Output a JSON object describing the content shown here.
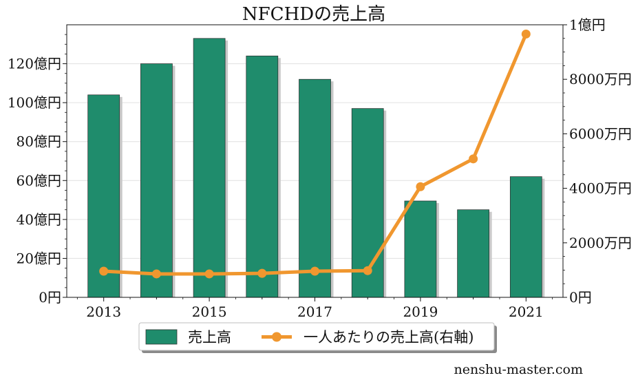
{
  "chart_data": {
    "type": "bar",
    "title": "NFCHDの売上高",
    "categories": [
      "2013",
      "2014",
      "2015",
      "2016",
      "2017",
      "2018",
      "2019",
      "2020",
      "2021"
    ],
    "x_tick_labels": [
      "2013",
      "2015",
      "2017",
      "2019",
      "2021"
    ],
    "series": [
      {
        "name": "売上高",
        "type": "bar",
        "axis": "left",
        "unit": "億円",
        "values": [
          104,
          120,
          133,
          124,
          112,
          97,
          49.5,
          45,
          62
        ]
      },
      {
        "name": "一人あたりの売上高(右軸)",
        "type": "line",
        "axis": "right",
        "unit": "万円",
        "values": [
          960,
          860,
          860,
          880,
          960,
          980,
          4060,
          5080,
          9660
        ]
      }
    ],
    "left_axis": {
      "ylim": [
        0,
        140
      ],
      "ticks": [
        0,
        20,
        40,
        60,
        80,
        100,
        120
      ],
      "tick_labels": [
        "0円",
        "20億円",
        "40億円",
        "60億円",
        "80億円",
        "100億円",
        "120億円"
      ]
    },
    "right_axis": {
      "ylim": [
        0,
        10000
      ],
      "ticks": [
        0,
        2000,
        4000,
        6000,
        8000,
        10000
      ],
      "tick_labels": [
        "0円",
        "2000万円",
        "4000万円",
        "6000万円",
        "8000万円",
        "1億円"
      ]
    },
    "grid": true,
    "legend_position": "bottom-center",
    "colors": {
      "bar": "#1f8c6c",
      "bar_shadow": "#c8c8c8",
      "line": "#f0972f",
      "grid": "#e0e0e0"
    }
  },
  "watermark": "nenshu-master.com"
}
